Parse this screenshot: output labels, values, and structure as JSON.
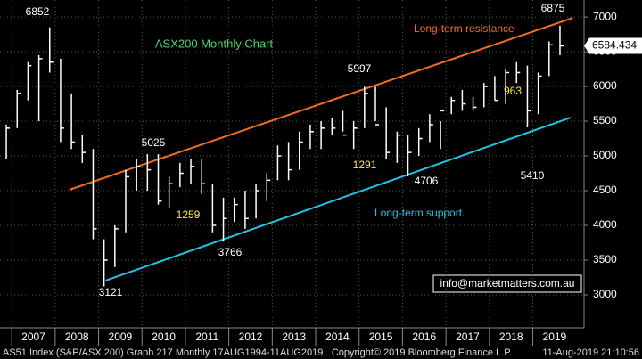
{
  "chart_data": {
    "type": "ohlc",
    "title": "ASX200 Monthly Chart",
    "color": "#ffffff",
    "x": [
      2006.75,
      2007.0,
      2007.25,
      2007.5,
      2007.75,
      2008.0,
      2008.25,
      2008.5,
      2008.75,
      2009.0,
      2009.25,
      2009.5,
      2009.75,
      2010.0,
      2010.25,
      2010.5,
      2010.75,
      2011.0,
      2011.25,
      2011.5,
      2011.75,
      2012.0,
      2012.25,
      2012.5,
      2012.75,
      2013.0,
      2013.25,
      2013.5,
      2013.75,
      2014.0,
      2014.25,
      2014.5,
      2014.75,
      2015.0,
      2015.25,
      2015.5,
      2015.75,
      2016.0,
      2016.25,
      2016.5,
      2016.75,
      2017.0,
      2017.25,
      2017.5,
      2017.75,
      2018.0,
      2018.25,
      2018.5,
      2018.75,
      2019.0,
      2019.25,
      2019.5
    ],
    "high": [
      5450,
      5950,
      6350,
      6450,
      6852,
      6400,
      5900,
      5300,
      5100,
      3800,
      4000,
      4800,
      4950,
      5025,
      5025,
      4700,
      4900,
      4950,
      4950,
      4600,
      4400,
      4400,
      4500,
      4600,
      4750,
      5150,
      5200,
      5350,
      5450,
      5500,
      5550,
      5650,
      5500,
      5997,
      5997,
      5700,
      5350,
      5300,
      5400,
      5600,
      5500,
      5850,
      5950,
      5850,
      6050,
      6150,
      6250,
      6350,
      6300,
      6200,
      6650,
      6875
    ],
    "low": [
      4950,
      5400,
      5800,
      5500,
      6200,
      5200,
      5100,
      4900,
      3800,
      3121,
      3400,
      3900,
      4500,
      4500,
      4300,
      4250,
      4550,
      4600,
      4450,
      3900,
      3766,
      4050,
      3950,
      4100,
      4350,
      4650,
      4650,
      4800,
      5100,
      5100,
      5300,
      5350,
      5100,
      5400,
      5500,
      4950,
      4900,
      4706,
      5000,
      5200,
      5100,
      5600,
      5650,
      5650,
      5700,
      5800,
      5750,
      6050,
      5410,
      5600,
      6150,
      6450
    ],
    "close": [
      5400,
      5900,
      6300,
      6400,
      6350,
      5400,
      5200,
      5050,
      3950,
      3500,
      3950,
      4700,
      4850,
      4800,
      4350,
      4600,
      4750,
      4850,
      4600,
      4000,
      4100,
      4300,
      4100,
      4500,
      4650,
      5000,
      4800,
      5200,
      5350,
      5400,
      5400,
      5300,
      5400,
      5900,
      5450,
      5050,
      5300,
      5050,
      5250,
      5450,
      5650,
      5800,
      5750,
      5700,
      6000,
      5800,
      6200,
      6200,
      5650,
      6150,
      6600,
      6584.434
    ],
    "last_price": 6584.434,
    "xlim": [
      2006.73,
      2020.18
    ],
    "ylim": [
      2525,
      7245
    ],
    "xticks": [
      {
        "value": 2007.5,
        "label": "2007"
      },
      {
        "value": 2008.5,
        "label": "2008"
      },
      {
        "value": 2009.5,
        "label": "2009"
      },
      {
        "value": 2010.5,
        "label": "2010"
      },
      {
        "value": 2011.5,
        "label": "2011"
      },
      {
        "value": 2012.5,
        "label": "2012"
      },
      {
        "value": 2013.5,
        "label": "2013"
      },
      {
        "value": 2014.5,
        "label": "2014"
      },
      {
        "value": 2015.5,
        "label": "2015"
      },
      {
        "value": 2016.5,
        "label": "2016"
      },
      {
        "value": 2017.5,
        "label": "2017"
      },
      {
        "value": 2018.5,
        "label": "2018"
      },
      {
        "value": 2019.5,
        "label": "2019"
      }
    ],
    "yticks": [
      3000,
      3500,
      4000,
      4500,
      5000,
      5500,
      6000,
      6500,
      7000
    ],
    "grid": true,
    "trendlines": [
      {
        "name": "Long-term resistance",
        "color": "#f26b21",
        "x": [
          2008.33,
          2019.92
        ],
        "y": [
          4513,
          6987
        ]
      },
      {
        "name": "Long-term support.",
        "color": "#22c4e0",
        "x": [
          2009.16,
          2019.87
        ],
        "y": [
          3205,
          5551
        ]
      }
    ],
    "annotations": [
      "6852",
      "5025",
      "3121",
      "3766",
      "1259",
      "5997",
      "1291",
      "4706",
      "963",
      "5410",
      "6875"
    ]
  },
  "watermark": "info@marketmatters.com.au",
  "footer": {
    "left": "AS51 Index (S&P/ASX 200) Graph 217  Monthly 17AUG1994-11AUG2019",
    "center": "Copyright© 2019 Bloomberg Finance L.P.",
    "right": "11-Aug-2019 21:10:56"
  }
}
